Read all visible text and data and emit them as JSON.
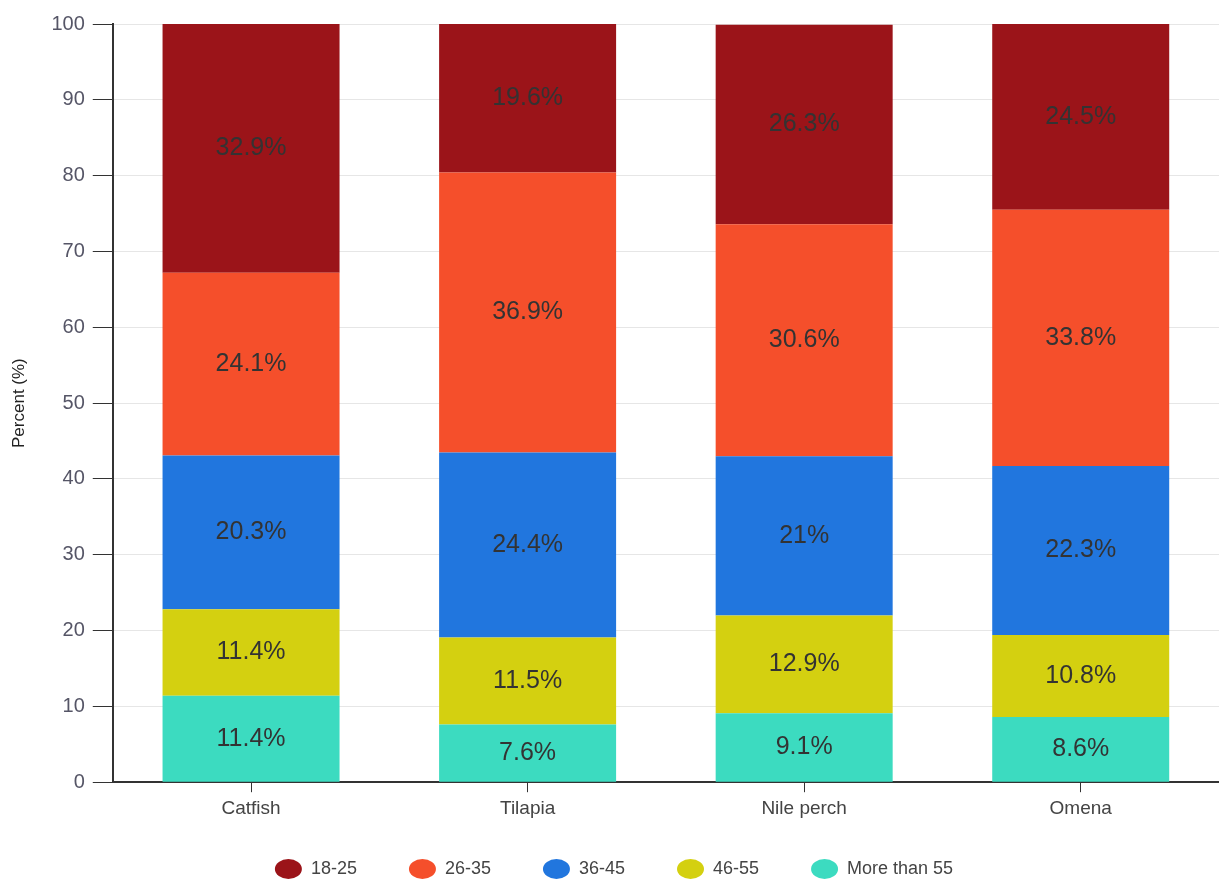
{
  "chart_data": {
    "type": "bar",
    "stacked": true,
    "ylabel": "Percent (%)",
    "categories": [
      "Catfish",
      "Tilapia",
      "Nile perch",
      "Omena"
    ],
    "series": [
      {
        "name": "More than 55",
        "color": "#3cdbc0",
        "values": [
          11.4,
          7.6,
          9.1,
          8.6
        ],
        "value_labels": [
          "11.4%",
          "7.6%",
          "9.1%",
          "8.6%"
        ]
      },
      {
        "name": "46-55",
        "color": "#d4d010",
        "values": [
          11.4,
          11.5,
          12.9,
          10.8
        ],
        "value_labels": [
          "11.4%",
          "11.5%",
          "12.9%",
          "10.8%"
        ]
      },
      {
        "name": "36-45",
        "color": "#2176de",
        "values": [
          20.3,
          24.4,
          21,
          22.3
        ],
        "value_labels": [
          "20.3%",
          "24.4%",
          "21%",
          "22.3%"
        ]
      },
      {
        "name": "26-35",
        "color": "#f54f2b",
        "values": [
          24.1,
          36.9,
          30.6,
          33.8
        ],
        "value_labels": [
          "24.1%",
          "36.9%",
          "30.6%",
          "33.8%"
        ]
      },
      {
        "name": "18-25",
        "color": "#9b1419",
        "values": [
          32.9,
          19.6,
          26.3,
          24.5
        ],
        "value_labels": [
          "32.9%",
          "19.6%",
          "26.3%",
          "24.5%"
        ]
      }
    ],
    "ylim": [
      0,
      100
    ],
    "yticks": [
      0,
      10,
      20,
      30,
      40,
      50,
      60,
      70,
      80,
      90,
      100
    ],
    "grid": "y",
    "legend": "bottom"
  }
}
